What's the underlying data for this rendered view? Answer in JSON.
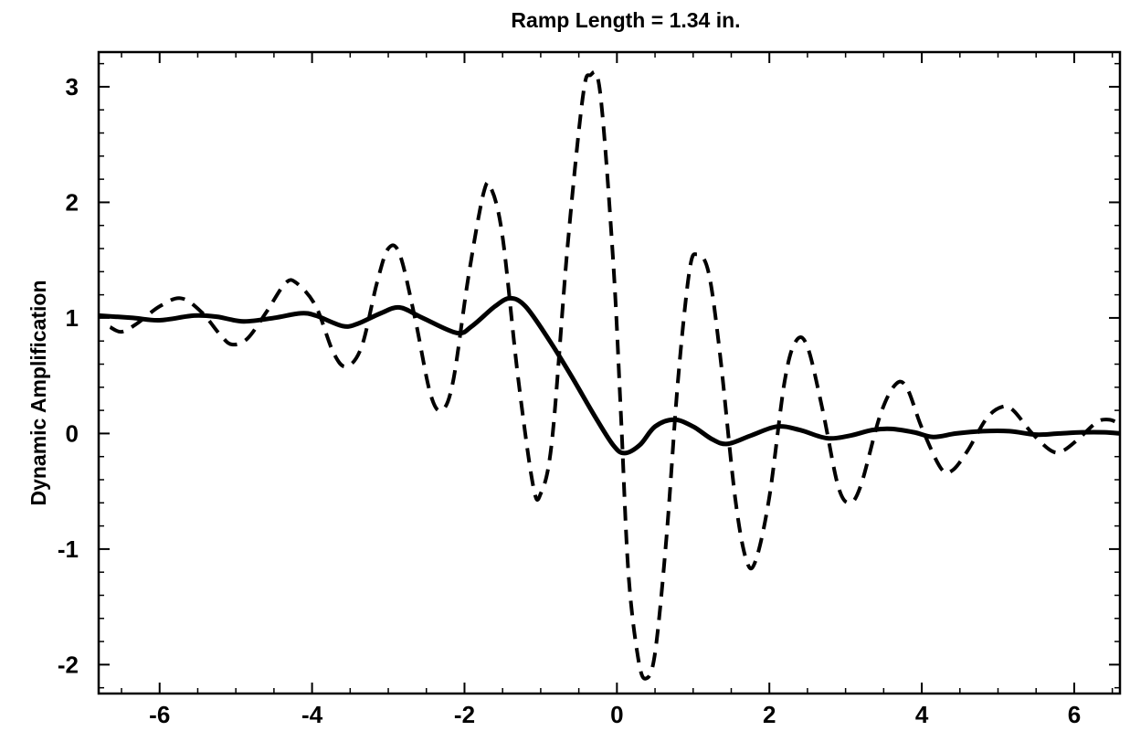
{
  "chart_data": {
    "type": "line",
    "title": "Ramp Length = 1.34 in.",
    "xlabel": "",
    "ylabel": "Dynamic Amplification",
    "xlim": [
      -6.8,
      6.6
    ],
    "ylim": [
      -2.25,
      3.3
    ],
    "x_ticks": [
      -6,
      -4,
      -2,
      0,
      2,
      4,
      6
    ],
    "y_ticks": [
      -2,
      -1,
      0,
      1,
      2,
      3
    ],
    "x_tick_labels": [
      "-6",
      "-4",
      "-2",
      "0",
      "2",
      "4",
      "6"
    ],
    "y_tick_labels": [
      "-2",
      "-1",
      "0",
      "1",
      "2",
      "3"
    ],
    "grid": false,
    "series": [
      {
        "style": "solid",
        "color": "#000000",
        "points": [
          [
            -6.8,
            1.02
          ],
          [
            -6.35,
            1.0
          ],
          [
            -6.0,
            0.98
          ],
          [
            -5.55,
            1.02
          ],
          [
            -5.25,
            1.01
          ],
          [
            -4.9,
            0.97
          ],
          [
            -4.5,
            1.0
          ],
          [
            -4.15,
            1.04
          ],
          [
            -3.95,
            1.02
          ],
          [
            -3.6,
            0.93
          ],
          [
            -3.4,
            0.95
          ],
          [
            -3.1,
            1.04
          ],
          [
            -2.85,
            1.09
          ],
          [
            -2.55,
            1.0
          ],
          [
            -2.1,
            0.87
          ],
          [
            -1.9,
            0.93
          ],
          [
            -1.6,
            1.1
          ],
          [
            -1.4,
            1.17
          ],
          [
            -1.2,
            1.1
          ],
          [
            -0.9,
            0.82
          ],
          [
            -0.6,
            0.5
          ],
          [
            -0.3,
            0.16
          ],
          [
            -0.05,
            -0.1
          ],
          [
            0.1,
            -0.17
          ],
          [
            0.3,
            -0.1
          ],
          [
            0.5,
            0.06
          ],
          [
            0.75,
            0.12
          ],
          [
            1.0,
            0.06
          ],
          [
            1.25,
            -0.05
          ],
          [
            1.45,
            -0.09
          ],
          [
            1.75,
            -0.02
          ],
          [
            2.1,
            0.06
          ],
          [
            2.4,
            0.03
          ],
          [
            2.75,
            -0.04
          ],
          [
            3.05,
            -0.02
          ],
          [
            3.35,
            0.03
          ],
          [
            3.6,
            0.04
          ],
          [
            3.9,
            0.01
          ],
          [
            4.15,
            -0.03
          ],
          [
            4.45,
            0.0
          ],
          [
            4.8,
            0.02
          ],
          [
            5.15,
            0.02
          ],
          [
            5.5,
            -0.01
          ],
          [
            5.8,
            0.0
          ],
          [
            6.1,
            0.01
          ],
          [
            6.4,
            0.01
          ],
          [
            6.6,
            0.0
          ]
        ]
      },
      {
        "style": "dashed",
        "color": "#000000",
        "points": [
          [
            -6.65,
            0.92
          ],
          [
            -6.5,
            0.88
          ],
          [
            -6.3,
            0.95
          ],
          [
            -6.0,
            1.1
          ],
          [
            -5.72,
            1.17
          ],
          [
            -5.45,
            1.05
          ],
          [
            -5.2,
            0.85
          ],
          [
            -5.05,
            0.77
          ],
          [
            -4.85,
            0.82
          ],
          [
            -4.6,
            1.05
          ],
          [
            -4.35,
            1.3
          ],
          [
            -4.2,
            1.3
          ],
          [
            -3.95,
            1.1
          ],
          [
            -3.72,
            0.7
          ],
          [
            -3.55,
            0.58
          ],
          [
            -3.35,
            0.75
          ],
          [
            -3.15,
            1.3
          ],
          [
            -3.0,
            1.6
          ],
          [
            -2.85,
            1.55
          ],
          [
            -2.65,
            1.0
          ],
          [
            -2.45,
            0.35
          ],
          [
            -2.3,
            0.2
          ],
          [
            -2.15,
            0.45
          ],
          [
            -1.95,
            1.35
          ],
          [
            -1.75,
            2.08
          ],
          [
            -1.65,
            2.12
          ],
          [
            -1.5,
            1.7
          ],
          [
            -1.3,
            0.5
          ],
          [
            -1.1,
            -0.45
          ],
          [
            -1.0,
            -0.52
          ],
          [
            -0.85,
            -0.05
          ],
          [
            -0.65,
            1.6
          ],
          [
            -0.45,
            2.9
          ],
          [
            -0.35,
            3.1
          ],
          [
            -0.22,
            2.95
          ],
          [
            -0.05,
            1.5
          ],
          [
            0.05,
            0.2
          ],
          [
            0.15,
            -1.2
          ],
          [
            0.28,
            -1.95
          ],
          [
            0.38,
            -2.12
          ],
          [
            0.5,
            -1.9
          ],
          [
            0.65,
            -0.9
          ],
          [
            0.8,
            0.45
          ],
          [
            0.95,
            1.4
          ],
          [
            1.05,
            1.55
          ],
          [
            1.2,
            1.4
          ],
          [
            1.35,
            0.7
          ],
          [
            1.55,
            -0.55
          ],
          [
            1.7,
            -1.1
          ],
          [
            1.82,
            -1.1
          ],
          [
            2.0,
            -0.55
          ],
          [
            2.2,
            0.45
          ],
          [
            2.35,
            0.8
          ],
          [
            2.5,
            0.75
          ],
          [
            2.7,
            0.2
          ],
          [
            2.9,
            -0.45
          ],
          [
            3.05,
            -0.6
          ],
          [
            3.2,
            -0.45
          ],
          [
            3.45,
            0.15
          ],
          [
            3.65,
            0.42
          ],
          [
            3.8,
            0.4
          ],
          [
            4.0,
            0.05
          ],
          [
            4.25,
            -0.3
          ],
          [
            4.4,
            -0.32
          ],
          [
            4.6,
            -0.15
          ],
          [
            4.85,
            0.13
          ],
          [
            5.05,
            0.23
          ],
          [
            5.2,
            0.2
          ],
          [
            5.45,
            0.0
          ],
          [
            5.7,
            -0.15
          ],
          [
            5.85,
            -0.15
          ],
          [
            6.05,
            -0.05
          ],
          [
            6.3,
            0.1
          ],
          [
            6.45,
            0.12
          ],
          [
            6.55,
            0.1
          ]
        ]
      }
    ]
  }
}
